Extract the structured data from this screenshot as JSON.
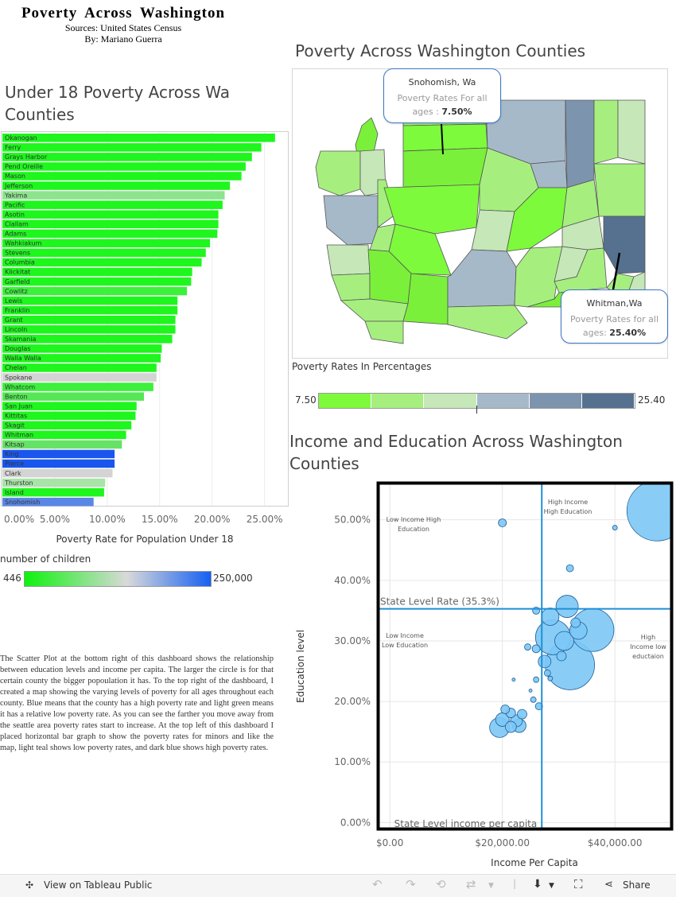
{
  "header": {
    "title": "Poverty Across Washington",
    "sources": "Sources: United States Census",
    "author": "By: Mariano Guerra"
  },
  "bar_section": {
    "title_line1": "Under 18 Poverty Across Wa",
    "title_line2": "Counties",
    "legend_title": "number of children",
    "legend_min": "446",
    "legend_max": "250,000"
  },
  "map_section": {
    "title": "Poverty Across Washington Counties",
    "legend_title": "Poverty Rates In Percentages",
    "legend_min": "7.50",
    "legend_max": "25.40",
    "legend_colors": [
      "#7dfa3c",
      "#a6ef7f",
      "#c6e7b8",
      "#a6b9c9",
      "#7c94ad",
      "#55718f"
    ],
    "tooltip_top": {
      "county": "Snohomish, Wa",
      "label": "Poverty Rates For all",
      "label2": "ages :",
      "value": "7.50%"
    },
    "tooltip_bottom": {
      "county": "Whitman,Wa",
      "label": "Poverty Rates for all",
      "label2": "ages:",
      "value": "25.40%"
    }
  },
  "scatter_section": {
    "title_line1": "Income and Education Across Washington",
    "title_line2": "Counties"
  },
  "description": "The Scatter Plot at the bottom right of this dashboard shows the relationship between education levels and income per capita. The larger the circle is for that certain county the bigger popoulation it has. To the top right of the dashboard, I created a map showing the varying levels of poverty for all ages throughout each county. Blue means that the county has a high poverty rate and light green means it has a relative low poverty rate. As you can see the farther you move away from the seattle area poverty rates start to increase. At the top left of this dashboard I placed horizontal bar graph to show the poverty rates for minors and like the map, light teal shows low poverty rates, and dark blue shows high poverty rates.",
  "footer": {
    "view_label": "View on Tableau Public",
    "share_label": "Share"
  },
  "chart_data": [
    {
      "type": "bar",
      "orientation": "horizontal",
      "xlabel": "Poverty Rate for Population Under 18",
      "xlim": [
        0,
        0.27
      ],
      "xticks": [
        "0.00%",
        "5.00%",
        "10.00%",
        "15.00%",
        "20.00%",
        "25.00%"
      ],
      "categories": [
        "Okanogan",
        "Ferry",
        "Grays Harbor",
        "Pend Oreille",
        "Mason",
        "Jefferson",
        "Yakima",
        "Pacific",
        "Asotin",
        "Clallam",
        "Adams",
        "Wahkiakum",
        "Stevens",
        "Columbia",
        "Klickitat",
        "Garfield",
        "Cowlitz",
        "Lewis",
        "Franklin",
        "Grant",
        "Lincoln",
        "Skamania",
        "Douglas",
        "Walla Walla",
        "Chelan",
        "Spokane",
        "Whatcom",
        "Benton",
        "San Juan",
        "Kittitas",
        "Skagit",
        "Whitman",
        "Kitsap",
        "King",
        "Pierce",
        "Clark",
        "Thurston",
        "Island",
        "Snohomish"
      ],
      "values": [
        0.26,
        0.247,
        0.238,
        0.232,
        0.228,
        0.217,
        0.212,
        0.21,
        0.206,
        0.206,
        0.205,
        0.198,
        0.194,
        0.19,
        0.181,
        0.18,
        0.176,
        0.167,
        0.167,
        0.165,
        0.165,
        0.162,
        0.152,
        0.151,
        0.147,
        0.147,
        0.144,
        0.135,
        0.128,
        0.127,
        0.123,
        0.118,
        0.114,
        0.107,
        0.107,
        0.105,
        0.098,
        0.097,
        0.087
      ],
      "colors": [
        "#1ef61e",
        "#1ef61e",
        "#1ef61e",
        "#1ef61e",
        "#1ef61e",
        "#1ef61e",
        "#8ee38e",
        "#1ef61e",
        "#1ef61e",
        "#1ef61e",
        "#1ef61e",
        "#1ef61e",
        "#1ef61e",
        "#1ef61e",
        "#1ef61e",
        "#1ef61e",
        "#3cf03c",
        "#1ef61e",
        "#1ef61e",
        "#1ef61e",
        "#1ef61e",
        "#1ef61e",
        "#1ef61e",
        "#1ef61e",
        "#1ef61e",
        "#d4d4d4",
        "#3cf03c",
        "#56e656",
        "#1ef61e",
        "#1ef61e",
        "#1ef61e",
        "#1ef61e",
        "#66e266",
        "#1a56ee",
        "#1a56ee",
        "#d4d4d4",
        "#a8e3a8",
        "#1ef61e",
        "#5a86e6"
      ]
    },
    {
      "type": "scatter",
      "xlabel": "Income Per Capita",
      "ylabel": "Education level",
      "xlim": [
        -2000,
        50000
      ],
      "ylim": [
        -0.01,
        0.56
      ],
      "xticks": [
        "$0.00",
        "$20,000.00",
        "$40,000.00"
      ],
      "yticks": [
        "0.00%",
        "10.00%",
        "20.00%",
        "30.00%",
        "40.00%",
        "50.00%"
      ],
      "reference_lines": {
        "y": {
          "value": 0.353,
          "label": "State Level Rate (35.3%)"
        },
        "x": {
          "value": 27000,
          "label": "State Level income per capita"
        }
      },
      "quadrant_labels": [
        {
          "text1": "Low Income High",
          "text2": "Education"
        },
        {
          "text1": "High Income",
          "text2": "High Education"
        },
        {
          "text1": "Low Income",
          "text2": "Low Education"
        },
        {
          "text1": "High",
          "text2": "Income low",
          "text3": "eductaion"
        }
      ],
      "points": [
        {
          "x": 47500,
          "y": 0.515,
          "r": 38
        },
        {
          "x": 20000,
          "y": 0.495,
          "r": 5
        },
        {
          "x": 40000,
          "y": 0.487,
          "r": 3
        },
        {
          "x": 32000,
          "y": 0.42,
          "r": 4.5
        },
        {
          "x": 31500,
          "y": 0.357,
          "r": 14
        },
        {
          "x": 26000,
          "y": 0.35,
          "r": 4.5
        },
        {
          "x": 28500,
          "y": 0.34,
          "r": 11
        },
        {
          "x": 33000,
          "y": 0.33,
          "r": 6
        },
        {
          "x": 36000,
          "y": 0.318,
          "r": 27
        },
        {
          "x": 33500,
          "y": 0.317,
          "r": 11
        },
        {
          "x": 29000,
          "y": 0.306,
          "r": 22
        },
        {
          "x": 31000,
          "y": 0.3,
          "r": 12
        },
        {
          "x": 26000,
          "y": 0.287,
          "r": 5
        },
        {
          "x": 24500,
          "y": 0.29,
          "r": 4
        },
        {
          "x": 30500,
          "y": 0.275,
          "r": 6
        },
        {
          "x": 32000,
          "y": 0.26,
          "r": 31
        },
        {
          "x": 27500,
          "y": 0.266,
          "r": 8
        },
        {
          "x": 28000,
          "y": 0.247,
          "r": 4
        },
        {
          "x": 28500,
          "y": 0.238,
          "r": 3
        },
        {
          "x": 26000,
          "y": 0.236,
          "r": 3.5
        },
        {
          "x": 22000,
          "y": 0.236,
          "r": 2
        },
        {
          "x": 25000,
          "y": 0.218,
          "r": 2
        },
        {
          "x": 26500,
          "y": 0.192,
          "r": 4.5
        },
        {
          "x": 25500,
          "y": 0.203,
          "r": 3.5
        },
        {
          "x": 20500,
          "y": 0.187,
          "r": 5.5
        },
        {
          "x": 21500,
          "y": 0.181,
          "r": 6
        },
        {
          "x": 23500,
          "y": 0.179,
          "r": 6
        },
        {
          "x": 22500,
          "y": 0.168,
          "r": 7.5
        },
        {
          "x": 20000,
          "y": 0.17,
          "r": 8.5
        },
        {
          "x": 23000,
          "y": 0.16,
          "r": 8.5
        },
        {
          "x": 21500,
          "y": 0.158,
          "r": 7
        },
        {
          "x": 19500,
          "y": 0.157,
          "r": 12.5
        }
      ]
    }
  ]
}
